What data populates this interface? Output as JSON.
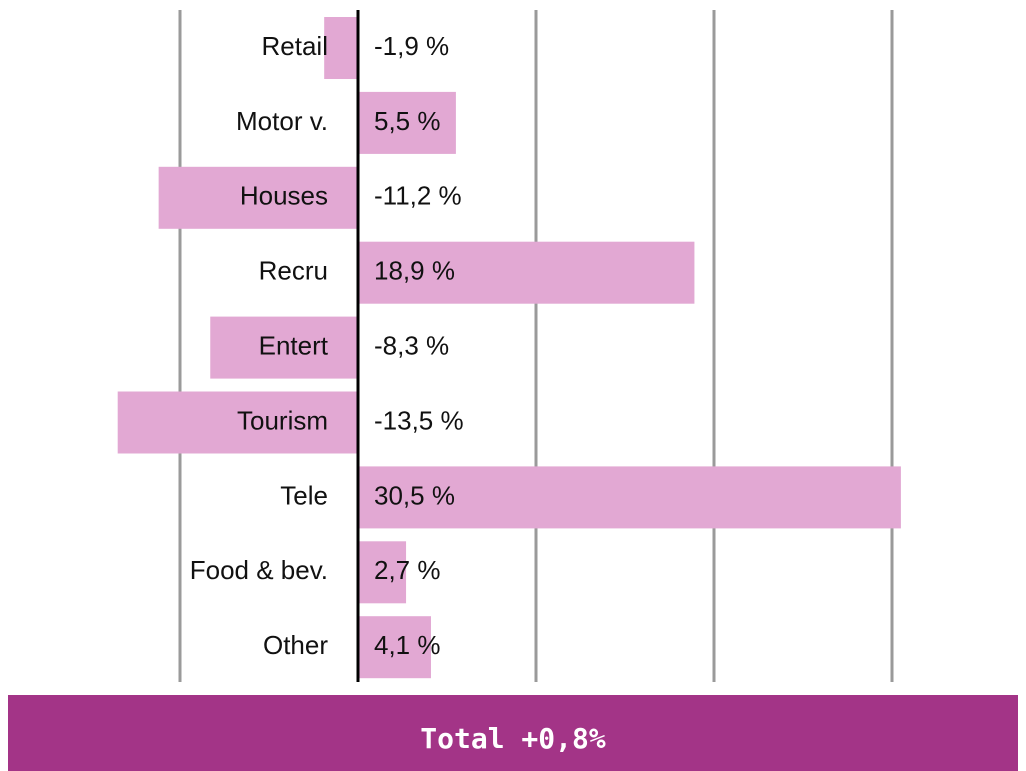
{
  "chart_data": {
    "type": "hbar",
    "categories": [
      "Retail",
      "Motor v.",
      "Houses",
      "Recru",
      "Entert",
      "Tourism",
      "Tele",
      "Food & bev.",
      "Other"
    ],
    "values": [
      -1.9,
      5.5,
      -11.2,
      18.9,
      -8.3,
      -13.5,
      30.5,
      2.7,
      4.1
    ],
    "value_labels": [
      "-1,9 %",
      "5,5 %",
      "-11,2 %",
      "18,9 %",
      "-8,3 %",
      "-13,5 %",
      "30,5 %",
      "2,7 %",
      "4,1 %"
    ],
    "color": "#e2a8d3",
    "xlim": [
      -20,
      37
    ],
    "xticks": [
      -10,
      0,
      10,
      20,
      30
    ],
    "grid": true,
    "annotation": "Total +0,8%"
  }
}
